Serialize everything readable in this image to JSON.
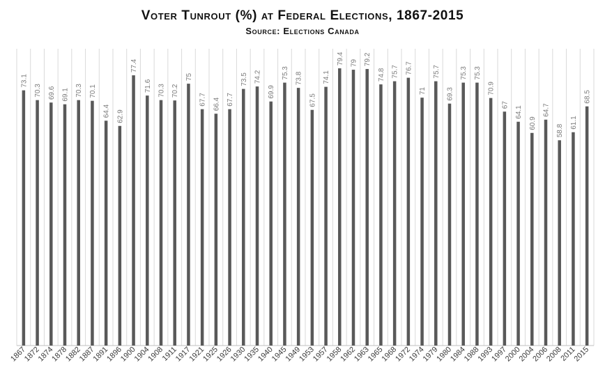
{
  "chart_data": {
    "type": "bar",
    "title": "Voter Tunrout (%) at Federal Elections, 1867-2015",
    "subtitle": "Source: Elections Canada",
    "xlabel": "",
    "ylabel": "",
    "ylim": [
      0,
      85
    ],
    "grid": true,
    "legend": "none",
    "bar_color": "#595959",
    "grid_color": "#d9d9d9",
    "categories": [
      "1867",
      "1872",
      "1874",
      "1878",
      "1882",
      "1887",
      "1891",
      "1896",
      "1900",
      "1904",
      "1908",
      "1911",
      "1917",
      "1921",
      "1925",
      "1926",
      "1930",
      "1935",
      "1940",
      "1945",
      "1949",
      "1953",
      "1957",
      "1958",
      "1962",
      "1963",
      "1965",
      "1968",
      "1972",
      "1974",
      "1979",
      "1980",
      "1984",
      "1988",
      "1993",
      "1997",
      "2000",
      "2004",
      "2006",
      "2008",
      "2011",
      "2015"
    ],
    "values": [
      73.1,
      70.3,
      69.6,
      69.1,
      70.3,
      70.1,
      64.4,
      62.9,
      77.4,
      71.6,
      70.3,
      70.2,
      75,
      67.7,
      66.4,
      67.7,
      73.5,
      74.2,
      69.9,
      75.3,
      73.8,
      67.5,
      74.1,
      79.4,
      79,
      79.2,
      74.8,
      75.7,
      76.7,
      71,
      75.7,
      69.3,
      75.3,
      75.3,
      70.9,
      67,
      64.1,
      60.9,
      64.7,
      58.8,
      61.1,
      68.5
    ],
    "value_labels": [
      "73.1",
      "70.3",
      "69.6",
      "69.1",
      "70.3",
      "70.1",
      "64.4",
      "62.9",
      "77.4",
      "71.6",
      "70.3",
      "70.2",
      "75",
      "67.7",
      "66.4",
      "67.7",
      "73.5",
      "74.2",
      "69.9",
      "75.3",
      "73.8",
      "67.5",
      "74.1",
      "79.4",
      "79",
      "79.2",
      "74.8",
      "75.7",
      "76.7",
      "71",
      "75.7",
      "69.3",
      "75.3",
      "75.3",
      "70.9",
      "67",
      "64.1",
      "60.9",
      "64.7",
      "58.8",
      "61.1",
      "68.5"
    ]
  }
}
